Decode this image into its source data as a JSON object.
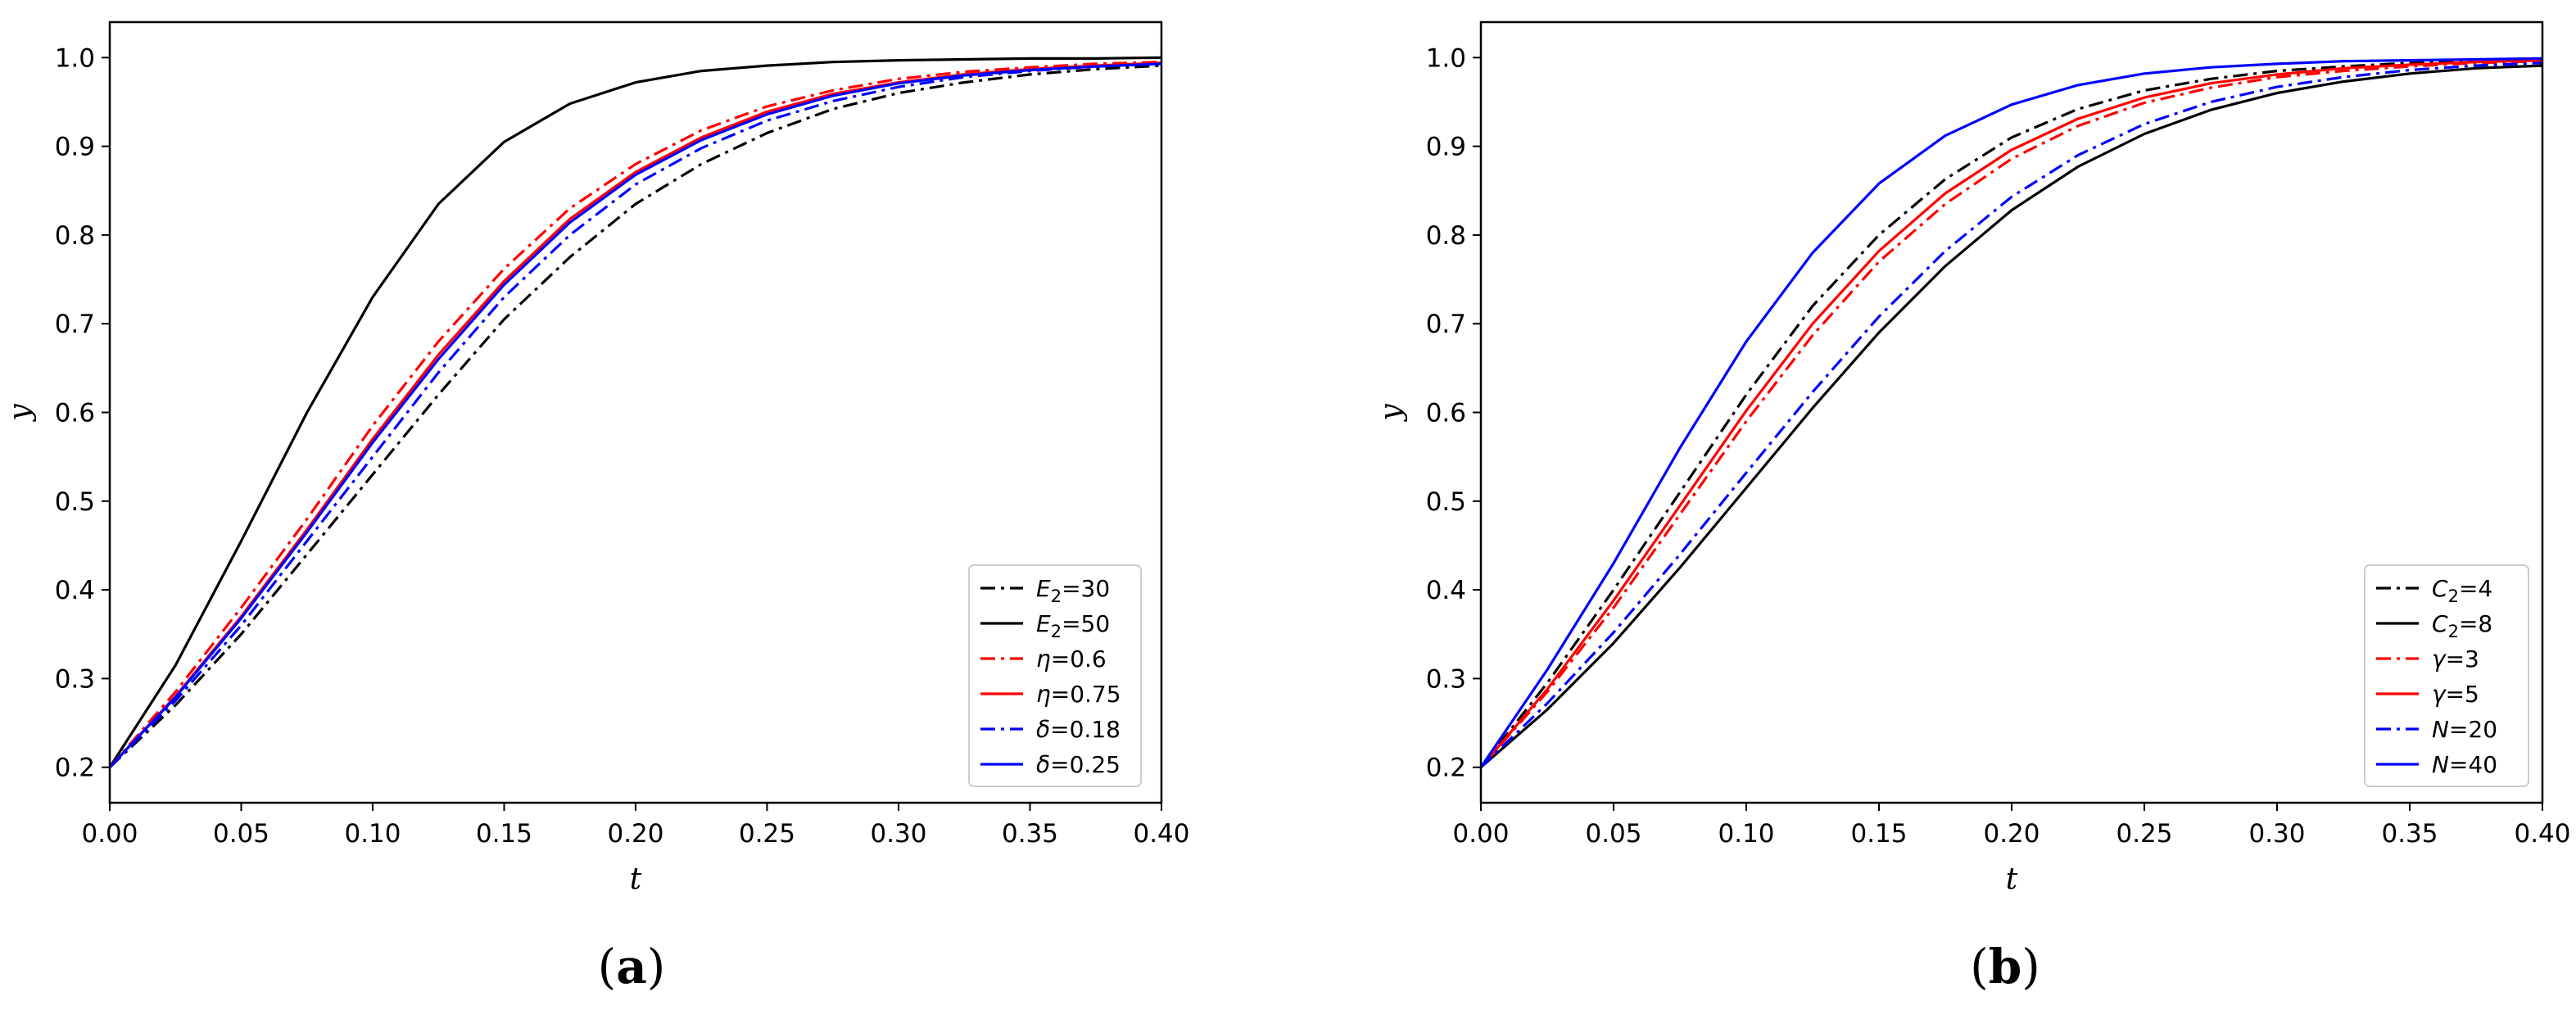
{
  "chart_data": [
    {
      "type": "line",
      "panel_label": "(a)",
      "panel_letter": "a",
      "xlabel": "t",
      "ylabel": "y",
      "xlim": [
        0.0,
        0.4
      ],
      "ylim": [
        0.16,
        1.04
      ],
      "xticks": [
        "0.00",
        "0.05",
        "0.10",
        "0.15",
        "0.20",
        "0.25",
        "0.30",
        "0.35",
        "0.40"
      ],
      "yticks": [
        "0.2",
        "0.3",
        "0.4",
        "0.5",
        "0.6",
        "0.7",
        "0.8",
        "0.9",
        "1.0"
      ],
      "legend_position": "lower-right",
      "x": [
        0.0,
        0.025,
        0.05,
        0.075,
        0.1,
        0.125,
        0.15,
        0.175,
        0.2,
        0.225,
        0.25,
        0.275,
        0.3,
        0.325,
        0.35,
        0.375,
        0.4
      ],
      "series": [
        {
          "sym": "E",
          "sub": "2",
          "val": "=30",
          "color": "#000000",
          "dash": "dashdot",
          "values": [
            0.2,
            0.27,
            0.35,
            0.44,
            0.53,
            0.62,
            0.705,
            0.775,
            0.835,
            0.88,
            0.915,
            0.942,
            0.96,
            0.972,
            0.981,
            0.987,
            0.991
          ]
        },
        {
          "sym": "E",
          "sub": "2",
          "val": "=50",
          "color": "#000000",
          "dash": "solid",
          "values": [
            0.2,
            0.315,
            0.455,
            0.6,
            0.73,
            0.835,
            0.905,
            0.948,
            0.972,
            0.985,
            0.991,
            0.995,
            0.997,
            0.998,
            0.999,
            0.999,
            1.0
          ]
        },
        {
          "sym": "η",
          "sub": "",
          "val": "=0.6",
          "color": "#ff0000",
          "dash": "dashdot",
          "values": [
            0.2,
            0.285,
            0.38,
            0.48,
            0.585,
            0.68,
            0.762,
            0.83,
            0.88,
            0.918,
            0.945,
            0.963,
            0.976,
            0.984,
            0.989,
            0.993,
            0.995
          ]
        },
        {
          "sym": "η",
          "sub": "",
          "val": "=0.75",
          "color": "#ff0000",
          "dash": "solid",
          "values": [
            0.2,
            0.28,
            0.37,
            0.468,
            0.57,
            0.665,
            0.748,
            0.818,
            0.871,
            0.91,
            0.939,
            0.959,
            0.972,
            0.981,
            0.987,
            0.991,
            0.994
          ]
        },
        {
          "sym": "δ",
          "sub": "",
          "val": "=0.18",
          "color": "#0000ff",
          "dash": "dashdot",
          "values": [
            0.2,
            0.275,
            0.36,
            0.455,
            0.55,
            0.645,
            0.73,
            0.8,
            0.857,
            0.898,
            0.929,
            0.951,
            0.967,
            0.978,
            0.985,
            0.99,
            0.993
          ]
        },
        {
          "sym": "δ",
          "sub": "",
          "val": "=0.25",
          "color": "#0000ff",
          "dash": "solid",
          "values": [
            0.2,
            0.279,
            0.368,
            0.465,
            0.566,
            0.66,
            0.744,
            0.814,
            0.868,
            0.907,
            0.936,
            0.957,
            0.971,
            0.98,
            0.986,
            0.99,
            0.993
          ]
        }
      ]
    },
    {
      "type": "line",
      "panel_label": "(b)",
      "panel_letter": "b",
      "xlabel": "t",
      "ylabel": "y",
      "xlim": [
        0.0,
        0.4
      ],
      "ylim": [
        0.16,
        1.04
      ],
      "xticks": [
        "0.00",
        "0.05",
        "0.10",
        "0.15",
        "0.20",
        "0.25",
        "0.30",
        "0.35",
        "0.40"
      ],
      "yticks": [
        "0.2",
        "0.3",
        "0.4",
        "0.5",
        "0.6",
        "0.7",
        "0.8",
        "0.9",
        "1.0"
      ],
      "legend_position": "lower-right",
      "x": [
        0.0,
        0.025,
        0.05,
        0.075,
        0.1,
        0.125,
        0.15,
        0.175,
        0.2,
        0.225,
        0.25,
        0.275,
        0.3,
        0.325,
        0.35,
        0.375,
        0.4
      ],
      "series": [
        {
          "sym": "C",
          "sub": "2",
          "val": "=4",
          "color": "#000000",
          "dash": "dashdot",
          "values": [
            0.2,
            0.295,
            0.4,
            0.51,
            0.62,
            0.72,
            0.8,
            0.863,
            0.91,
            0.942,
            0.963,
            0.976,
            0.985,
            0.99,
            0.994,
            0.996,
            0.997
          ]
        },
        {
          "sym": "C",
          "sub": "2",
          "val": "=8",
          "color": "#000000",
          "dash": "solid",
          "values": [
            0.2,
            0.265,
            0.34,
            0.425,
            0.515,
            0.605,
            0.69,
            0.765,
            0.828,
            0.877,
            0.914,
            0.941,
            0.96,
            0.973,
            0.982,
            0.988,
            0.991
          ]
        },
        {
          "sym": "γ",
          "sub": "",
          "val": "=3",
          "color": "#ff0000",
          "dash": "dashdot",
          "values": [
            0.2,
            0.285,
            0.38,
            0.485,
            0.59,
            0.687,
            0.77,
            0.835,
            0.886,
            0.923,
            0.949,
            0.966,
            0.978,
            0.985,
            0.99,
            0.994,
            0.996
          ]
        },
        {
          "sym": "γ",
          "sub": "",
          "val": "=5",
          "color": "#ff0000",
          "dash": "solid",
          "values": [
            0.2,
            0.288,
            0.388,
            0.495,
            0.602,
            0.7,
            0.782,
            0.847,
            0.896,
            0.931,
            0.955,
            0.971,
            0.981,
            0.988,
            0.992,
            0.995,
            0.997
          ]
        },
        {
          "sym": "N",
          "sub": "",
          "val": "=20",
          "color": "#0000ff",
          "dash": "dashdot",
          "values": [
            0.2,
            0.272,
            0.352,
            0.44,
            0.532,
            0.623,
            0.708,
            0.782,
            0.843,
            0.89,
            0.925,
            0.95,
            0.967,
            0.978,
            0.986,
            0.991,
            0.994
          ]
        },
        {
          "sym": "N",
          "sub": "",
          "val": "=40",
          "color": "#0000ff",
          "dash": "solid",
          "values": [
            0.2,
            0.31,
            0.43,
            0.56,
            0.68,
            0.78,
            0.858,
            0.912,
            0.947,
            0.969,
            0.982,
            0.989,
            0.993,
            0.996,
            0.997,
            0.998,
            0.999
          ]
        }
      ]
    }
  ]
}
